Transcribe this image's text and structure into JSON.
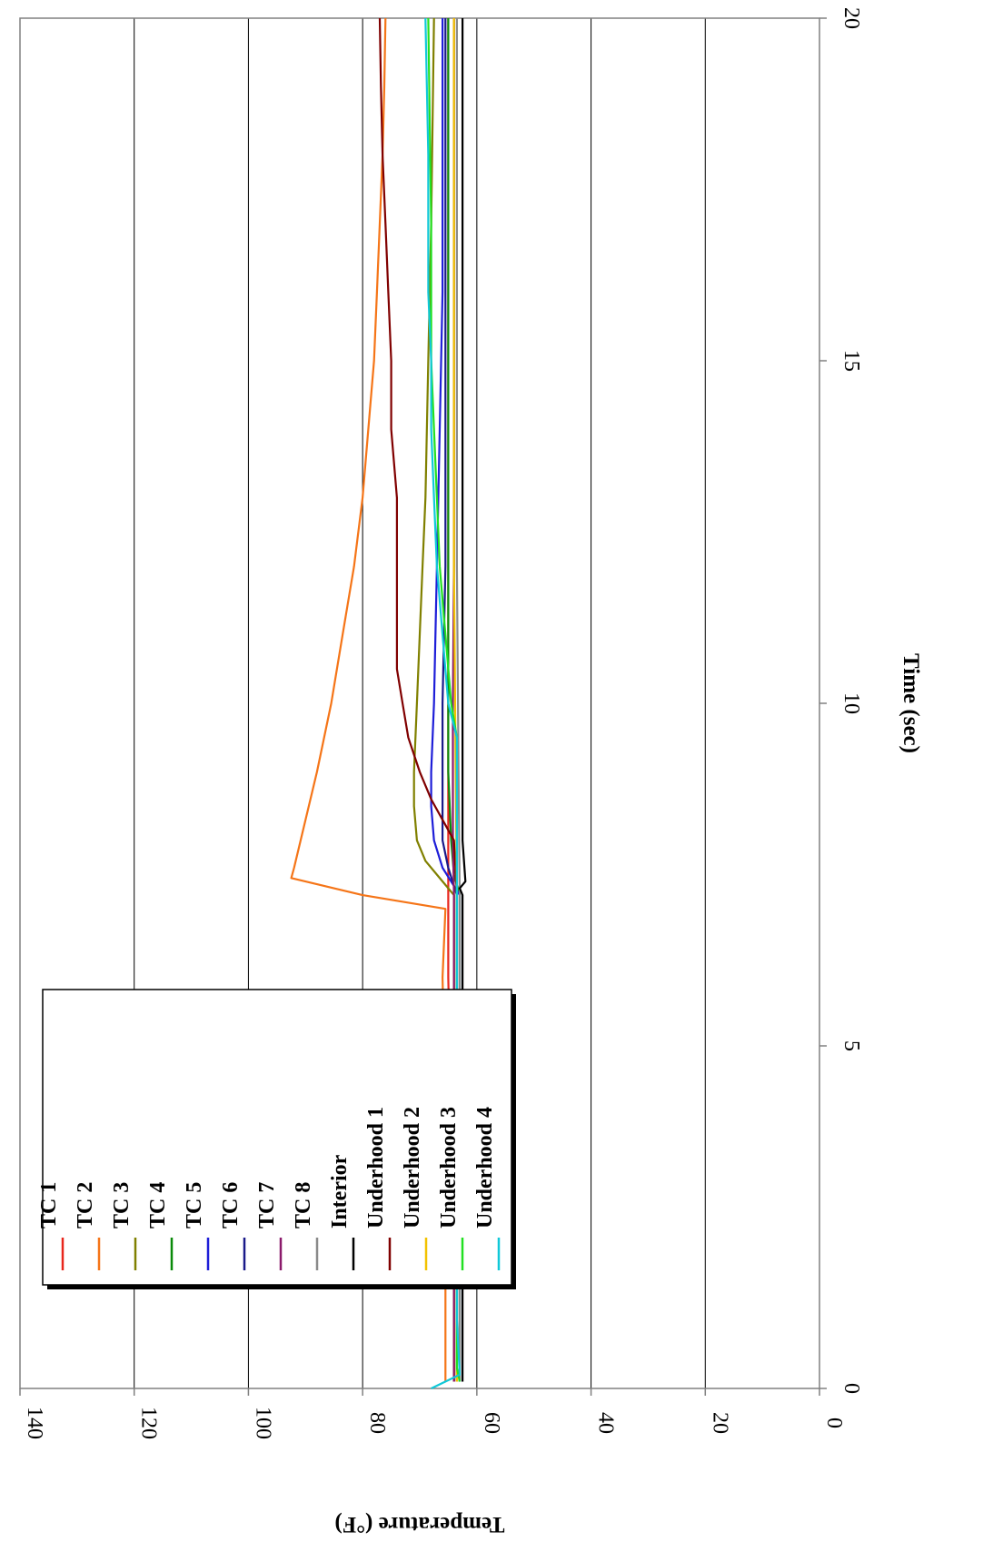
{
  "chart_data": {
    "type": "line",
    "title": "",
    "xlabel": "Time (sec)",
    "ylabel": "Temperature (°F)",
    "xlim": [
      0,
      20
    ],
    "ylim": [
      0,
      140
    ],
    "x_ticks": [
      "0",
      "5",
      "10",
      "15",
      "20"
    ],
    "y_ticks": [
      "0",
      "20",
      "40",
      "60",
      "80",
      "100",
      "120",
      "140"
    ],
    "grid": "horizontal",
    "legend_position": "lower-left",
    "orientation": "rotated-90-clockwise",
    "series": [
      {
        "name": "TC 1",
        "color": "#e8261c",
        "points": [
          [
            0.1,
            64
          ],
          [
            2,
            64
          ],
          [
            4,
            64.5
          ],
          [
            6,
            65
          ],
          [
            7.2,
            65
          ],
          [
            8,
            65
          ],
          [
            10,
            65
          ],
          [
            12,
            65
          ],
          [
            15,
            65
          ],
          [
            18,
            65
          ],
          [
            20,
            65
          ]
        ]
      },
      {
        "name": "TC 2",
        "color": "#f57518",
        "points": [
          [
            0.1,
            65.5
          ],
          [
            2,
            65.5
          ],
          [
            4,
            65.5
          ],
          [
            6,
            66
          ],
          [
            7.0,
            65.5
          ],
          [
            7.2,
            80
          ],
          [
            7.45,
            92.5
          ],
          [
            7.6,
            92
          ],
          [
            9,
            88
          ],
          [
            10,
            85.5
          ],
          [
            11,
            83.5
          ],
          [
            12,
            81.5
          ],
          [
            13,
            80
          ],
          [
            14,
            79
          ],
          [
            15,
            78
          ],
          [
            16,
            77.5
          ],
          [
            17,
            77
          ],
          [
            18,
            76.5
          ],
          [
            19,
            76.2
          ],
          [
            20,
            76
          ]
        ]
      },
      {
        "name": "TC 3",
        "color": "#808000",
        "points": [
          [
            0.1,
            64
          ],
          [
            2,
            64
          ],
          [
            4,
            64
          ],
          [
            6,
            64
          ],
          [
            7.2,
            64
          ],
          [
            7.4,
            66
          ],
          [
            7.7,
            69
          ],
          [
            8,
            70.5
          ],
          [
            8.5,
            71
          ],
          [
            9,
            71
          ],
          [
            10,
            70.5
          ],
          [
            11,
            70
          ],
          [
            12,
            69.5
          ],
          [
            13,
            69
          ],
          [
            15,
            68.5
          ],
          [
            17,
            68
          ],
          [
            20,
            67.5
          ]
        ]
      },
      {
        "name": "TC 4",
        "color": "#0a8a0a",
        "points": [
          [
            0.1,
            63
          ],
          [
            2,
            63
          ],
          [
            4,
            63
          ],
          [
            6,
            63
          ],
          [
            7.2,
            63
          ],
          [
            7.5,
            64
          ],
          [
            8,
            64.5
          ],
          [
            9,
            65
          ],
          [
            10,
            65
          ],
          [
            12,
            65
          ],
          [
            15,
            65
          ],
          [
            18,
            65
          ],
          [
            20,
            65
          ]
        ]
      },
      {
        "name": "TC 5",
        "color": "#1e1ed8",
        "points": [
          [
            0.1,
            63
          ],
          [
            2,
            63
          ],
          [
            4,
            63
          ],
          [
            6,
            63
          ],
          [
            7.2,
            63
          ],
          [
            7.6,
            66
          ],
          [
            8,
            67.5
          ],
          [
            8.5,
            68
          ],
          [
            9,
            68
          ],
          [
            10,
            67.5
          ],
          [
            12,
            67
          ],
          [
            14,
            66.5
          ],
          [
            16,
            66
          ],
          [
            18,
            66
          ],
          [
            20,
            66
          ]
        ]
      },
      {
        "name": "TC 6",
        "color": "#1a1a8a",
        "points": [
          [
            0.1,
            63.5
          ],
          [
            2,
            63.5
          ],
          [
            4,
            63.5
          ],
          [
            6,
            63.5
          ],
          [
            7.2,
            63.5
          ],
          [
            7.6,
            65
          ],
          [
            8,
            66
          ],
          [
            9,
            66
          ],
          [
            10,
            66
          ],
          [
            12,
            65.5
          ],
          [
            15,
            65.5
          ],
          [
            18,
            65.5
          ],
          [
            20,
            65.5
          ]
        ]
      },
      {
        "name": "TC 7",
        "color": "#8b1a6b",
        "points": [
          [
            0.1,
            64
          ],
          [
            2,
            64
          ],
          [
            4,
            64
          ],
          [
            6,
            64
          ],
          [
            7.2,
            64
          ],
          [
            8,
            64.2
          ],
          [
            10,
            64.2
          ],
          [
            12,
            64
          ],
          [
            15,
            64
          ],
          [
            18,
            64
          ],
          [
            20,
            64
          ]
        ]
      },
      {
        "name": "TC 8",
        "color": "#8a8a8a",
        "points": [
          [
            0.1,
            63
          ],
          [
            2,
            63
          ],
          [
            4,
            63
          ],
          [
            6,
            63
          ],
          [
            7.2,
            63
          ],
          [
            9,
            63.2
          ],
          [
            12,
            63.5
          ],
          [
            15,
            63.5
          ],
          [
            18,
            63.5
          ],
          [
            20,
            63.5
          ]
        ]
      },
      {
        "name": "Interior",
        "color": "#000000",
        "points": [
          [
            0.1,
            62.5
          ],
          [
            2,
            62.5
          ],
          [
            4,
            62.5
          ],
          [
            6,
            62.5
          ],
          [
            7.2,
            62.5
          ],
          [
            7.3,
            63
          ],
          [
            7.4,
            62
          ],
          [
            8,
            62.5
          ],
          [
            10,
            62.5
          ],
          [
            12,
            62.5
          ],
          [
            15,
            62.5
          ],
          [
            18,
            62.5
          ],
          [
            20,
            62.5
          ]
        ]
      },
      {
        "name": "Underhood 1",
        "color": "#800000",
        "points": [
          [
            0.1,
            63.5
          ],
          [
            2,
            63.5
          ],
          [
            4,
            63.5
          ],
          [
            6,
            63.5
          ],
          [
            7.2,
            63.5
          ],
          [
            8,
            64
          ],
          [
            8.3,
            66
          ],
          [
            8.6,
            68
          ],
          [
            9,
            70
          ],
          [
            9.5,
            72
          ],
          [
            10,
            73
          ],
          [
            10.5,
            74
          ],
          [
            11,
            74
          ],
          [
            12,
            74
          ],
          [
            13,
            74
          ],
          [
            14,
            75
          ],
          [
            15,
            75
          ],
          [
            16,
            75.5
          ],
          [
            17,
            76
          ],
          [
            18,
            76.5
          ],
          [
            19,
            76.8
          ],
          [
            20,
            77
          ]
        ]
      },
      {
        "name": "Underhood 2",
        "color": "#f2c200",
        "points": [
          [
            0.1,
            63.5
          ],
          [
            2,
            63.5
          ],
          [
            4,
            63.5
          ],
          [
            6,
            63.5
          ],
          [
            7.2,
            63.5
          ],
          [
            9,
            63.7
          ],
          [
            12,
            64
          ],
          [
            15,
            64
          ],
          [
            18,
            64
          ],
          [
            20,
            64
          ]
        ]
      },
      {
        "name": "Underhood 3",
        "color": "#22e022",
        "points": [
          [
            0.1,
            63
          ],
          [
            0.3,
            63.5
          ],
          [
            2,
            63.5
          ],
          [
            4,
            63.5
          ],
          [
            6,
            63.5
          ],
          [
            7.2,
            63.5
          ],
          [
            8,
            63.5
          ],
          [
            9,
            63.5
          ],
          [
            9.5,
            63.5
          ],
          [
            10,
            64.5
          ],
          [
            11,
            65.5
          ],
          [
            12,
            66.5
          ],
          [
            13,
            67
          ],
          [
            14,
            67.5
          ],
          [
            15,
            68
          ],
          [
            17,
            68
          ],
          [
            20,
            68.5
          ]
        ]
      },
      {
        "name": "Underhood 4",
        "color": "#10c8d8",
        "points": [
          [
            0.0,
            68
          ],
          [
            0.2,
            63
          ],
          [
            1,
            63.5
          ],
          [
            3,
            63.5
          ],
          [
            5,
            63.5
          ],
          [
            7.2,
            63.5
          ],
          [
            8,
            63.5
          ],
          [
            9,
            63.5
          ],
          [
            9.5,
            63.5
          ],
          [
            10,
            65
          ],
          [
            11,
            66
          ],
          [
            12,
            67
          ],
          [
            13,
            67.5
          ],
          [
            14,
            68
          ],
          [
            15,
            68
          ],
          [
            16,
            68.5
          ],
          [
            18,
            68.5
          ],
          [
            20,
            69
          ]
        ]
      }
    ]
  }
}
